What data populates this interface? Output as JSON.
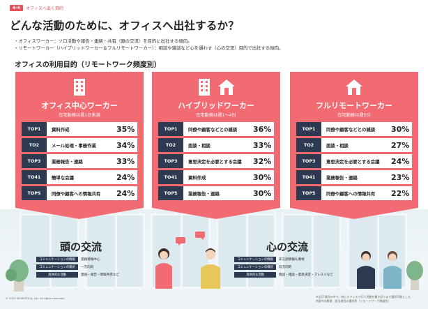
{
  "header": {
    "badge": "4-4",
    "section": "オフィスへ出く目的"
  },
  "title": "どんな活動のために、オフィスへ出社するか？",
  "bullets": [
    "・オフィスワーカー：ソロ活動や報告・連絡・共有（頭の交流）を目的に出社する傾向。",
    "・リモートワーカー（ハイブリッドワーカー＆フルリモートワーカー）：相談や雑談など心を通わす（心の交流）目的で出社する傾向。"
  ],
  "subtitle": "オフィスの利用目的（リモートワーク頻度別）",
  "cards": [
    {
      "name": "オフィス中心ワーカー",
      "sub": "在宅勤務は週1日未満",
      "icons": [
        "office-building-icon"
      ],
      "ranks": [
        {
          "tag": "TOP1",
          "text": "資料作成",
          "pct": "35%"
        },
        {
          "tag": "TO2",
          "text": "メール処理・事務作業",
          "pct": "34%"
        },
        {
          "tag": "TOP3",
          "text": "業務報告・連絡",
          "pct": "33%"
        },
        {
          "tag": "TO41",
          "text": "簡単な会議",
          "pct": "24%"
        },
        {
          "tag": "TOP5",
          "text": "同僚や顧客への情報共有",
          "pct": "24%"
        }
      ]
    },
    {
      "name": "ハイブリッドワーカー",
      "sub": "在宅勤務は週1〜4日",
      "icons": [
        "office-building-icon",
        "home-icon"
      ],
      "ranks": [
        {
          "tag": "TOP1",
          "text": "同僚や顧客などとの雑談",
          "pct": "36%"
        },
        {
          "tag": "TO2",
          "text": "面談・相談",
          "pct": "33%"
        },
        {
          "tag": "TOP3",
          "text": "意思決定を必要とする会議",
          "pct": "32%"
        },
        {
          "tag": "TO41",
          "text": "資料作成",
          "pct": "30%"
        },
        {
          "tag": "TOP5",
          "text": "業務報告・連絡",
          "pct": "30%"
        }
      ]
    },
    {
      "name": "フルリモートワーカー",
      "sub": "在宅勤務は週5日",
      "icons": [
        "home-icon"
      ],
      "ranks": [
        {
          "tag": "TOP1",
          "text": "同僚や顧客などとの雑談",
          "pct": "30%"
        },
        {
          "tag": "TO2",
          "text": "面談・相談",
          "pct": "27%"
        },
        {
          "tag": "TOP3",
          "text": "意思決定を必要とする会議",
          "pct": "24%"
        },
        {
          "tag": "TO41",
          "text": "業務報告・連絡",
          "pct": "23%"
        },
        {
          "tag": "TOP5",
          "text": "同僚や顧客への情報共有",
          "pct": "22%"
        }
      ]
    }
  ],
  "exchanges": [
    {
      "title": "頭の交流",
      "rows": [
        {
          "tag": "コミュニケーションの情報",
          "val": "実践情報中心"
        },
        {
          "tag": "コミュニケーションの様式",
          "val": "一方向的"
        },
        {
          "tag": "具体的な活動",
          "val": "連絡・報告・情報共有など"
        }
      ]
    },
    {
      "title": "心の交流",
      "rows": [
        {
          "tag": "コミュニケーションの情報",
          "val": "非言語情報も重視"
        },
        {
          "tag": "コミュニケーションの様式",
          "val": "双方向的"
        },
        {
          "tag": "具体的な活動",
          "val": "雑談・相談・意思決定・ブレストなど"
        }
      ]
    }
  ],
  "footer": "© 2023 WORKPOCA, Ltd. All rights reserved.",
  "notes": [
    "※全17項目の中で、特にオフィスで行う活動を書き記りまで選択可能とした",
    "※図中の数値：該当項目の選択率（リモートワーク頻度別）"
  ],
  "colors": {
    "accent": "#f26b72",
    "navy": "#2d3a52",
    "badge": "#e8525c"
  }
}
